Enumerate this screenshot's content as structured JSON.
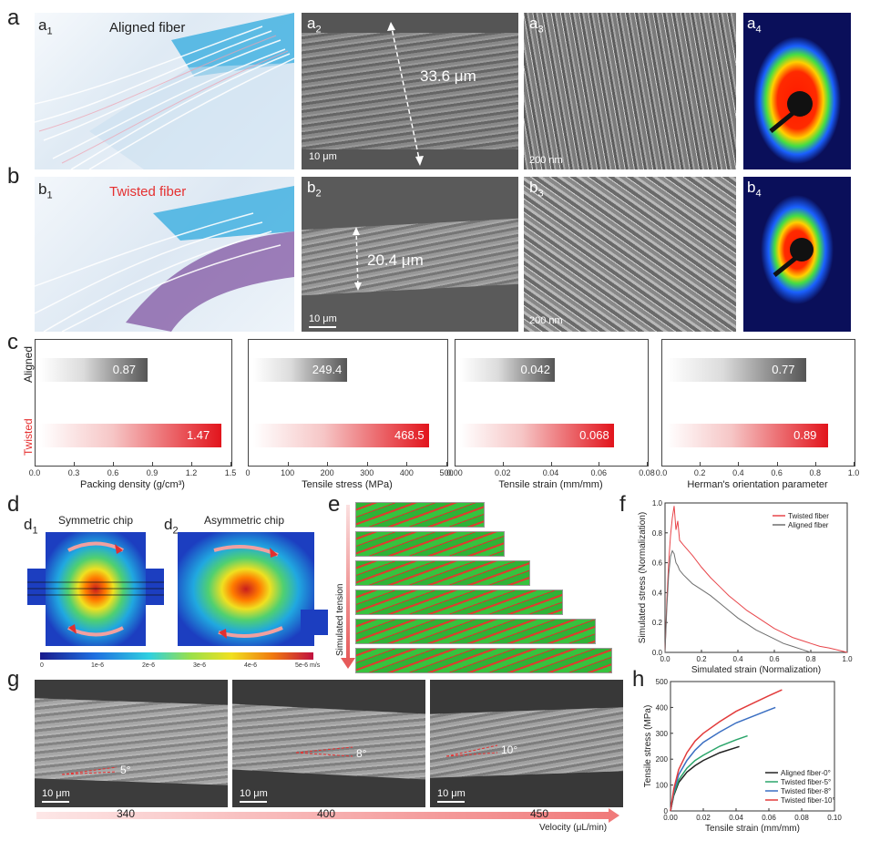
{
  "panels": {
    "a": "a",
    "b": "b",
    "c": "c",
    "d": "d",
    "e": "e",
    "f": "f",
    "g": "g",
    "h": "h",
    "a1": "a",
    "a2": "a",
    "a3": "a",
    "a4": "a",
    "b1": "b",
    "b2": "b",
    "b3": "b",
    "b4": "b",
    "d1": "d",
    "d2": "d",
    "sub_1": "1",
    "sub_2": "2",
    "sub_3": "3",
    "sub_4": "4"
  },
  "row_a": {
    "title": "Aligned fiber",
    "diameter": "33.6 μm",
    "scale_sem": "10 μm",
    "scale_nano": "200 nm"
  },
  "row_b": {
    "title": "Twisted fiber",
    "diameter": "20.4 μm",
    "scale_sem": "10 μm",
    "scale_nano": "200 nm"
  },
  "panel_c": {
    "row_labels": [
      "Aligned",
      "Twisted"
    ],
    "charts": [
      {
        "xlabel": "Packing density (g/cm³)",
        "ticks": [
          "0.0",
          "0.3",
          "0.6",
          "0.9",
          "1.2",
          "1.5"
        ],
        "max": 1.5,
        "aligned": 0.87,
        "twisted": 1.47,
        "aligned_label": "0.87",
        "twisted_label": "1.47"
      },
      {
        "xlabel": "Tensile stress (MPa)",
        "ticks": [
          "0",
          "100",
          "200",
          "300",
          "400",
          "500"
        ],
        "max": 500,
        "aligned": 249.4,
        "twisted": 468.5,
        "aligned_label": "249.4",
        "twisted_label": "468.5"
      },
      {
        "xlabel": "Tensile strain (mm/mm)",
        "ticks": [
          "0.00",
          "0.02",
          "0.04",
          "0.06",
          "0.08"
        ],
        "max": 0.08,
        "aligned": 0.042,
        "twisted": 0.068,
        "aligned_label": "0.042",
        "twisted_label": "0.068"
      },
      {
        "xlabel": "Herman's orientation parameter",
        "ticks": [
          "0.0",
          "0.2",
          "0.4",
          "0.6",
          "0.8",
          "1.0"
        ],
        "max": 1.0,
        "aligned": 0.77,
        "twisted": 0.89,
        "aligned_label": "0.77",
        "twisted_label": "0.89"
      }
    ]
  },
  "panel_d": {
    "symmetric_title": "Symmetric chip",
    "asymmetric_title": "Asymmetric chip",
    "colorbar_ticks": [
      "0",
      "1e-6",
      "2e-6",
      "3e-6",
      "4e-6",
      "5e-6 m/s"
    ]
  },
  "panel_e": {
    "ylabel": "Simulated tension"
  },
  "panel_f": {
    "xlabel": "Simulated strain (Normalization)",
    "ylabel": "Simulated stress (Normalization)",
    "x_ticks": [
      "0.0",
      "0.2",
      "0.4",
      "0.6",
      "0.8",
      "1.0"
    ],
    "y_ticks": [
      "0.0",
      "0.2",
      "0.4",
      "0.6",
      "0.8",
      "1.0"
    ],
    "legend": [
      "Twisted fiber",
      "Aligned fiber"
    ],
    "colors": {
      "twisted": "#e8454a",
      "aligned": "#6e6e6e"
    }
  },
  "panel_g": {
    "angles": [
      "5°",
      "8°",
      "10°"
    ],
    "scale": "10 μm",
    "velocities": [
      "340",
      "400",
      "450"
    ],
    "velocity_label": "Velocity (μL/min)"
  },
  "chart_data": [
    {
      "type": "bar",
      "panel": "c",
      "categories": [
        "Aligned",
        "Twisted"
      ],
      "series": [
        {
          "name": "Packing density (g/cm³)",
          "values": [
            0.87,
            1.47
          ]
        },
        {
          "name": "Tensile stress (MPa)",
          "values": [
            249.4,
            468.5
          ]
        },
        {
          "name": "Tensile strain (mm/mm)",
          "values": [
            0.042,
            0.068
          ]
        },
        {
          "name": "Herman's orientation parameter",
          "values": [
            0.77,
            0.89
          ]
        }
      ]
    },
    {
      "type": "line",
      "panel": "f",
      "xlabel": "Simulated strain (Normalization)",
      "ylabel": "Simulated stress (Normalization)",
      "xlim": [
        0,
        1.0
      ],
      "ylim": [
        0,
        1.0
      ],
      "series": [
        {
          "name": "Twisted fiber",
          "color": "#e8454a",
          "x": [
            0.0,
            0.01,
            0.02,
            0.03,
            0.04,
            0.05,
            0.06,
            0.07,
            0.08,
            0.1,
            0.15,
            0.2,
            0.25,
            0.3,
            0.35,
            0.4,
            0.45,
            0.5,
            0.55,
            0.6,
            0.65,
            0.7,
            0.75,
            0.8,
            0.85,
            0.9,
            0.95,
            1.0
          ],
          "y": [
            0.0,
            0.35,
            0.6,
            0.78,
            0.9,
            0.98,
            0.82,
            0.88,
            0.75,
            0.72,
            0.65,
            0.57,
            0.5,
            0.44,
            0.38,
            0.33,
            0.28,
            0.24,
            0.2,
            0.16,
            0.13,
            0.1,
            0.08,
            0.06,
            0.04,
            0.03,
            0.015,
            0.0
          ]
        },
        {
          "name": "Aligned fiber",
          "color": "#6e6e6e",
          "x": [
            0.0,
            0.01,
            0.02,
            0.03,
            0.04,
            0.05,
            0.06,
            0.07,
            0.08,
            0.1,
            0.15,
            0.2,
            0.25,
            0.3,
            0.35,
            0.4,
            0.45,
            0.5,
            0.55,
            0.6,
            0.65,
            0.7,
            0.75,
            0.8
          ],
          "y": [
            0.0,
            0.3,
            0.52,
            0.64,
            0.68,
            0.66,
            0.6,
            0.58,
            0.55,
            0.52,
            0.46,
            0.42,
            0.38,
            0.33,
            0.28,
            0.23,
            0.19,
            0.15,
            0.12,
            0.09,
            0.06,
            0.04,
            0.02,
            0.0
          ]
        }
      ]
    },
    {
      "type": "line",
      "panel": "h",
      "xlabel": "Tensile strain (mm/mm)",
      "ylabel": "Tensile stress (MPa)",
      "xlim": [
        0,
        0.1
      ],
      "ylim": [
        0,
        500
      ],
      "x_ticks": [
        "0.00",
        "0.02",
        "0.04",
        "0.06",
        "0.08",
        "0.10"
      ],
      "y_ticks": [
        "0",
        "100",
        "200",
        "300",
        "400",
        "500"
      ],
      "series": [
        {
          "name": "Aligned fiber-0°",
          "color": "#222222",
          "x": [
            0,
            0.002,
            0.005,
            0.01,
            0.015,
            0.02,
            0.03,
            0.042
          ],
          "y": [
            0,
            60,
            110,
            150,
            175,
            195,
            225,
            249
          ]
        },
        {
          "name": "Twisted fiber-5°",
          "color": "#2aa56a",
          "x": [
            0,
            0.002,
            0.005,
            0.01,
            0.015,
            0.02,
            0.03,
            0.04,
            0.047
          ],
          "y": [
            0,
            65,
            120,
            165,
            195,
            215,
            250,
            275,
            290
          ]
        },
        {
          "name": "Twisted fiber-8°",
          "color": "#3b6fc2",
          "x": [
            0,
            0.002,
            0.005,
            0.01,
            0.015,
            0.02,
            0.03,
            0.04,
            0.05,
            0.06,
            0.064
          ],
          "y": [
            0,
            75,
            140,
            195,
            235,
            265,
            305,
            340,
            365,
            390,
            400
          ]
        },
        {
          "name": "Twisted fiber-10°",
          "color": "#e23b3b",
          "x": [
            0,
            0.002,
            0.005,
            0.01,
            0.015,
            0.02,
            0.03,
            0.04,
            0.05,
            0.06,
            0.068
          ],
          "y": [
            0,
            85,
            160,
            225,
            270,
            300,
            345,
            385,
            415,
            445,
            468
          ]
        }
      ]
    }
  ]
}
